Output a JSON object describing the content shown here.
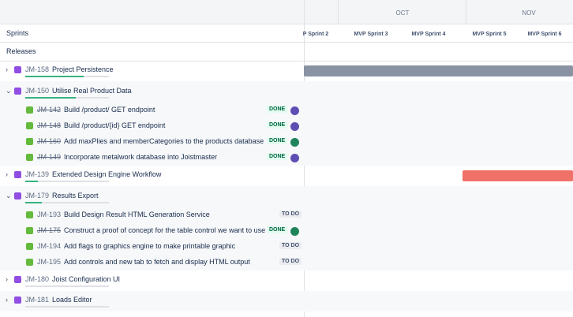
{
  "sidebar": {
    "sprints_label": "Sprints",
    "releases_label": "Releases"
  },
  "timeline": {
    "months": [
      "OCT",
      "NOV"
    ],
    "sprints": [
      "P Sprint 2",
      "MVP Sprint 3",
      "MVP Sprint 4",
      "MVP Sprint 5",
      "MVP Sprint 6"
    ]
  },
  "epics": [
    {
      "key": "JM-158",
      "title": "Project Persistence",
      "children": []
    },
    {
      "key": "JM-150",
      "title": "Utilise Real Product Data",
      "children": [
        {
          "key": "JM-142",
          "title": "Build /product/ GET endpoint",
          "status": "DONE"
        },
        {
          "key": "JM-148",
          "title": "Build /product/{id} GET endpoint",
          "status": "DONE"
        },
        {
          "key": "JM-160",
          "title": "Add maxPlies and memberCategories to the products database",
          "status": "DONE"
        },
        {
          "key": "JM-149",
          "title": "Incorporate metalwork database into Joistmaster",
          "status": "DONE"
        }
      ]
    },
    {
      "key": "JM-139",
      "title": "Extended Design Engine Workflow",
      "children": []
    },
    {
      "key": "JM-179",
      "title": "Results Export",
      "children": [
        {
          "key": "JM-193",
          "title": "Build Design Result HTML Generation Service",
          "status": "TO DO"
        },
        {
          "key": "JM-175",
          "title": "Construct a proof of concept for the table control we want to use",
          "status": "DONE"
        },
        {
          "key": "JM-194",
          "title": "Add flags to graphics engine to make printable graphic",
          "status": "TO DO"
        },
        {
          "key": "JM-195",
          "title": "Add controls and new tab to fetch and display HTML output",
          "status": "TO DO"
        }
      ]
    },
    {
      "key": "JM-180",
      "title": "Joist Configuration UI",
      "children": []
    },
    {
      "key": "JM-181",
      "title": "Loads Editor",
      "children": []
    }
  ]
}
